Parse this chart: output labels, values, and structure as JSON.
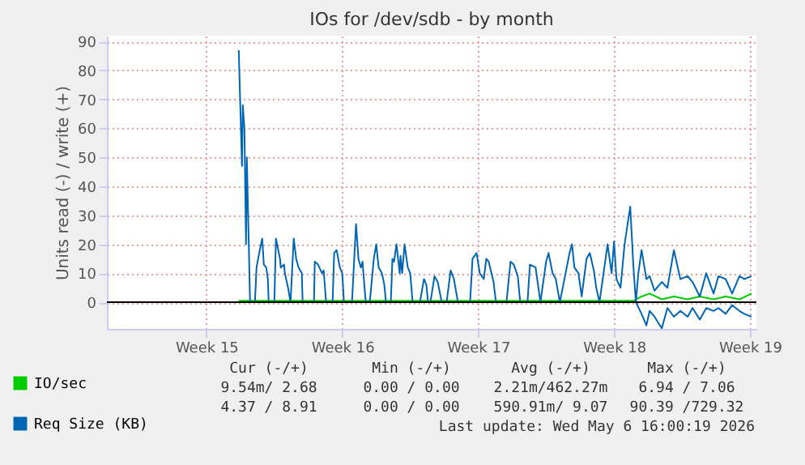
{
  "chart_data": {
    "type": "line",
    "title": "IOs for /dev/sdb - by month",
    "ylabel": "Units read (-) / write (+)",
    "xlim": [
      "2026-03-31T21:00",
      "2026-05-04T08:00"
    ],
    "xticks": [
      {
        "value": "2026-04-06",
        "label": "Week 15"
      },
      {
        "value": "2026-04-13",
        "label": "Week 16"
      },
      {
        "value": "2026-04-20",
        "label": "Week 17"
      },
      {
        "value": "2026-04-27",
        "label": "Week 18"
      },
      {
        "value": "2026-05-04",
        "label": "Week 19"
      }
    ],
    "ylim": [
      -9.2,
      92
    ],
    "yticks": [
      0,
      10,
      20,
      30,
      40,
      50,
      60,
      70,
      80,
      90
    ],
    "grid": true,
    "legend": "bottom left",
    "marker": "none",
    "line_style": "solid",
    "series": [
      {
        "name": "IO/sec",
        "color": "#00cc00",
        "x": [
          "2026-04-07T16:00",
          "2026-04-13T00:00",
          "2026-04-20T00:00",
          "2026-04-28T00:00",
          "2026-04-28T10:00",
          "2026-04-28T20:00",
          "2026-04-29T11:00",
          "2026-04-30T02:00",
          "2026-04-30T19:00",
          "2026-05-01T10:00",
          "2026-05-02T03:00",
          "2026-05-02T18:00",
          "2026-05-03T11:00",
          "2026-05-04T02:00"
        ],
        "values": [
          0.5,
          0.5,
          0.5,
          0.5,
          2,
          3,
          1,
          2,
          1,
          2,
          1,
          2,
          1,
          3
        ]
      },
      {
        "name": "Req Size (KB)",
        "color": "#0066b3",
        "x": [
          "2026-04-07T16:00",
          "2026-04-07T20:00",
          "2026-04-07T21:00",
          "2026-04-07T23:00",
          "2026-04-08T01:00",
          "2026-04-08T02:00",
          "2026-04-08T06:00",
          "2026-04-08T12:00",
          "2026-04-08T14:00",
          "2026-04-08T18:00",
          "2026-04-08T21:00",
          "2026-04-08T23:00",
          "2026-04-09T02:00",
          "2026-04-09T04:00",
          "2026-04-09T05:00",
          "2026-04-09T12:00",
          "2026-04-09T14:00",
          "2026-04-09T19:00",
          "2026-04-09T20:00",
          "2026-04-10T00:00",
          "2026-04-10T01:00",
          "2026-04-10T05:00",
          "2026-04-10T08:00",
          "2026-04-10T12:00",
          "2026-04-10T15:00",
          "2026-04-10T18:00",
          "2026-04-10T22:00",
          "2026-04-10T23:00",
          "2026-04-11T13:00",
          "2026-04-11T14:00",
          "2026-04-11T18:00",
          "2026-04-11T23:00",
          "2026-04-12T01:00",
          "2026-04-12T04:00",
          "2026-04-12T12:00",
          "2026-04-12T14:00",
          "2026-04-12T17:00",
          "2026-04-12T21:00",
          "2026-04-13T00:00",
          "2026-04-13T02:00",
          "2026-04-13T12:00",
          "2026-04-13T17:00",
          "2026-04-13T20:00",
          "2026-04-13T23:00",
          "2026-04-14T01:00",
          "2026-04-14T05:00",
          "2026-04-14T10:00",
          "2026-04-14T15:00",
          "2026-04-14T18:00",
          "2026-04-14T21:00",
          "2026-04-15T01:00",
          "2026-04-15T04:00",
          "2026-04-15T06:00",
          "2026-04-15T12:00",
          "2026-04-15T14:00",
          "2026-04-15T16:00",
          "2026-04-15T19:00",
          "2026-04-15T23:00",
          "2026-04-16T00:00",
          "2026-04-16T02:00",
          "2026-04-16T05:00",
          "2026-04-16T09:00",
          "2026-04-16T12:00",
          "2026-04-16T15:00",
          "2026-04-17T00:00",
          "2026-04-17T05:00",
          "2026-04-17T08:00",
          "2026-04-17T10:00",
          "2026-04-17T13:00",
          "2026-04-17T18:00",
          "2026-04-17T22:00",
          "2026-04-18T03:00",
          "2026-04-18T09:00",
          "2026-04-18T14:00",
          "2026-04-18T18:00",
          "2026-04-18T23:00",
          "2026-04-19T14:00",
          "2026-04-19T17:00",
          "2026-04-19T22:00",
          "2026-04-20T02:00",
          "2026-04-20T07:00",
          "2026-04-20T10:00",
          "2026-04-20T13:00",
          "2026-04-20T19:00",
          "2026-04-20T22:00",
          "2026-04-21T11:00",
          "2026-04-21T16:00",
          "2026-04-21T20:00",
          "2026-04-22T01:00",
          "2026-04-22T04:00",
          "2026-04-22T13:00",
          "2026-04-22T16:00",
          "2026-04-22T23:00",
          "2026-04-23T02:00",
          "2026-04-23T05:00",
          "2026-04-23T12:00",
          "2026-04-23T15:00",
          "2026-04-23T20:00",
          "2026-04-24T00:00",
          "2026-04-24T05:00",
          "2026-04-24T17:00",
          "2026-04-24T20:00",
          "2026-04-24T23:00",
          "2026-04-25T04:00",
          "2026-04-25T08:00",
          "2026-04-25T14:00",
          "2026-04-25T18:00",
          "2026-04-25T23:00",
          "2026-04-26T02:00",
          "2026-04-26T06:00",
          "2026-04-26T16:00",
          "2026-04-26T21:00",
          "2026-04-27T00:00",
          "2026-04-27T03:00",
          "2026-04-27T08:00",
          "2026-04-27T13:00",
          "2026-04-27T20:00",
          "2026-04-28T00:00",
          "2026-04-28T03:00",
          "2026-04-28T06:00",
          "2026-04-28T10:00",
          "2026-04-28T16:00",
          "2026-04-28T20:00",
          "2026-04-29T02:00",
          "2026-04-29T11:00",
          "2026-04-29T18:00",
          "2026-04-30T02:00",
          "2026-04-30T10:00",
          "2026-04-30T19:00",
          "2026-05-01T01:00",
          "2026-05-01T10:00",
          "2026-05-01T18:00",
          "2026-05-02T03:00",
          "2026-05-02T09:00",
          "2026-05-02T18:00",
          "2026-05-03T02:00",
          "2026-05-03T11:00",
          "2026-05-03T17:00",
          "2026-05-04T02:00"
        ],
        "values": [
          87,
          47,
          68,
          60,
          20,
          50,
          0,
          0,
          12,
          18,
          22,
          13,
          12,
          8,
          0,
          0,
          22,
          15,
          12,
          13,
          10,
          5,
          0,
          22,
          15,
          12,
          10,
          0,
          0,
          14,
          13,
          10,
          11,
          0,
          0,
          17,
          18,
          12,
          10,
          0,
          0,
          27,
          15,
          12,
          14,
          0,
          0,
          15,
          20,
          12,
          10,
          6,
          0,
          0,
          15,
          14,
          20,
          10,
          16,
          10,
          20,
          12,
          10,
          0,
          0,
          8,
          6,
          0,
          0,
          9,
          7,
          0,
          0,
          11,
          8,
          0,
          0,
          15,
          17,
          10,
          8,
          15,
          14,
          7,
          0,
          0,
          14,
          13,
          9,
          0,
          0,
          13,
          12,
          6,
          0,
          14,
          17,
          10,
          8,
          0,
          17,
          20,
          12,
          10,
          2,
          15,
          17,
          11,
          5,
          0,
          20,
          10,
          21,
          8,
          5,
          20,
          33,
          12,
          0,
          10,
          18,
          8,
          9,
          4,
          7,
          5,
          18,
          8,
          9,
          7,
          2,
          10,
          3,
          9,
          8,
          3,
          9,
          8,
          9
        ]
      },
      {
        "color": "#0066b3",
        "x": [
          "2026-04-28T03:00",
          "2026-04-28T10:00",
          "2026-04-28T16:00",
          "2026-04-28T20:00",
          "2026-04-29T02:00",
          "2026-04-29T11:00",
          "2026-04-29T18:00",
          "2026-04-30T02:00",
          "2026-04-30T10:00",
          "2026-04-30T19:00",
          "2026-05-01T01:00",
          "2026-05-01T10:00",
          "2026-05-01T18:00",
          "2026-05-02T03:00",
          "2026-05-02T09:00",
          "2026-05-02T18:00",
          "2026-05-03T02:00",
          "2026-05-03T11:00",
          "2026-05-03T17:00",
          "2026-05-04T02:00"
        ],
        "values": [
          0,
          -4,
          -8,
          -3,
          -5,
          -9,
          -2,
          -5,
          -3,
          -5,
          -2,
          -6,
          -2,
          -3,
          -2,
          -4,
          -1,
          -3,
          -4,
          -5
        ]
      }
    ],
    "ref_lines": [
      {
        "axis": "y",
        "value": 0,
        "color": "#000000"
      }
    ],
    "annotations": [
      "Cur (-/+)",
      "Min (-/+)",
      "Avg (-/+)",
      "Max (-/+)",
      "9.54m/ 2.68",
      "0.00 / 0.00",
      "2.21m/462.27m",
      "6.94 / 7.06",
      "4.37 / 8.91",
      "0.00 / 0.00",
      "590.91m/ 9.07",
      "90.39 /729.32",
      "Last update: Wed May  6 16:00:19 2026"
    ]
  }
}
